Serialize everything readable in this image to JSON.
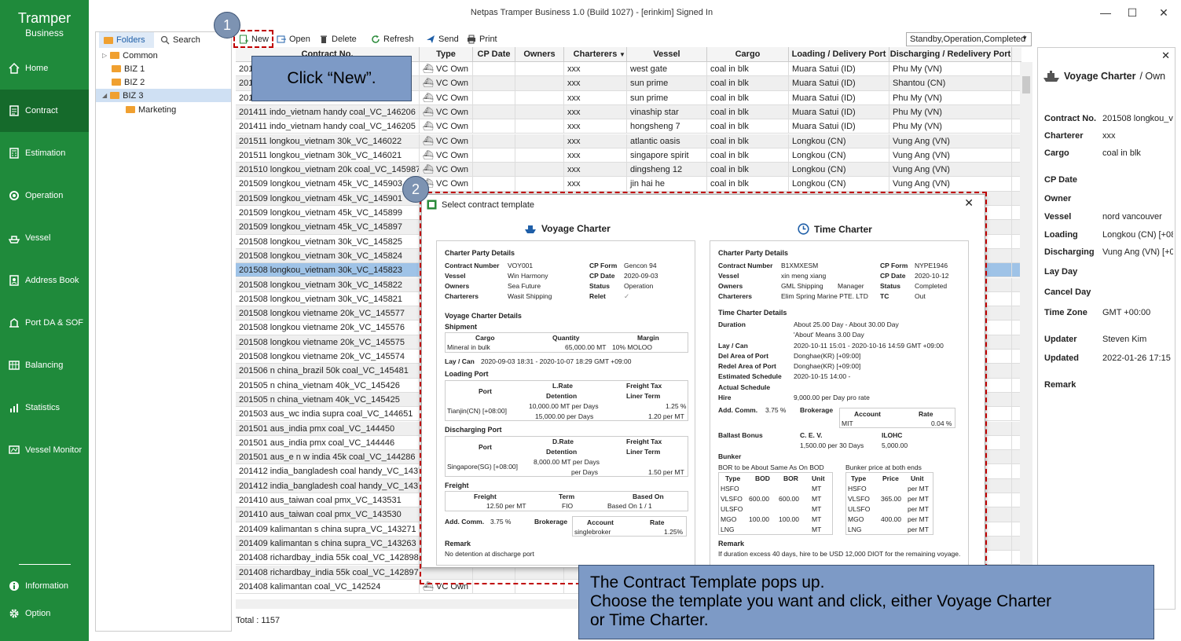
{
  "app": {
    "logo_line1": "Tramper",
    "logo_line2": "Business",
    "title": "Netpas Tramper Business 1.0 (Build 1027) - [erinkim] Signed In"
  },
  "window": {
    "minimize": "—",
    "maximize": "☐",
    "close": "✕"
  },
  "nav": [
    {
      "label": "Home",
      "icon": "home-icon"
    },
    {
      "label": "Contract",
      "icon": "contract-icon"
    },
    {
      "label": "Estimation",
      "icon": "estimation-icon"
    },
    {
      "label": "Operation",
      "icon": "operation-icon"
    },
    {
      "label": "Vessel",
      "icon": "vessel-icon"
    },
    {
      "label": "Address Book",
      "icon": "address-book-icon"
    },
    {
      "label": "Port DA & SOF",
      "icon": "port-icon"
    },
    {
      "label": "Balancing",
      "icon": "balancing-icon"
    },
    {
      "label": "Statistics",
      "icon": "statistics-icon"
    },
    {
      "label": "Vessel Monitor",
      "icon": "vessel-monitor-icon"
    }
  ],
  "nav_bottom": [
    {
      "label": "Information",
      "icon": "info-icon"
    },
    {
      "label": "Option",
      "icon": "gear-icon"
    }
  ],
  "folders": {
    "tab_folders": "Folders",
    "tab_search": "Search",
    "tree": [
      {
        "label": "Common"
      },
      {
        "label": "BIZ 1"
      },
      {
        "label": "BIZ 2"
      },
      {
        "label": "BIZ 3"
      },
      {
        "label": "Marketing"
      }
    ]
  },
  "toolbar": {
    "new": "New",
    "open": "Open",
    "delete": "Delete",
    "refresh": "Refresh",
    "send": "Send",
    "print": "Print",
    "filter": "Standby,Operation,Completed"
  },
  "grid": {
    "headers": [
      "Contract No.",
      "Type",
      "CP Date",
      "Owners",
      "Charterers",
      "Vessel",
      "Cargo",
      "Loading / Delivery Port",
      "Discharging / Redelivery Port"
    ],
    "rows": [
      [
        "201",
        "VC Own",
        "",
        "",
        "xxx",
        "west gate",
        "coal in blk",
        "Muara Satui (ID)",
        "Phu My (VN)"
      ],
      [
        "201",
        "VC Own",
        "",
        "",
        "xxx",
        "sun prime",
        "coal in blk",
        "Muara Satui (ID)",
        "Shantou (CN)"
      ],
      [
        "201",
        "VC Own",
        "",
        "",
        "xxx",
        "sun prime",
        "coal in blk",
        "Muara Satui (ID)",
        "Phu My (VN)"
      ],
      [
        "201411 indo_vietnam handy coal_VC_146206",
        "VC Own",
        "",
        "",
        "xxx",
        "vinaship star",
        "coal in blk",
        "Muara Satui (ID)",
        "Phu My (VN)"
      ],
      [
        "201411 indo_vietnam handy coal_VC_146205",
        "VC Own",
        "",
        "",
        "xxx",
        "hongsheng 7",
        "coal in blk",
        "Muara Satui (ID)",
        "Phu My (VN)"
      ],
      [
        "201511 longkou_vietnam 30k_VC_146022",
        "VC Own",
        "",
        "",
        "xxx",
        "atlantic oasis",
        "coal in blk",
        "Longkou (CN)",
        "Vung Ang (VN)"
      ],
      [
        "201511 longkou_vietnam 30k_VC_146021",
        "VC Own",
        "",
        "",
        "xxx",
        "singapore spirit",
        "coal in blk",
        "Longkou (CN)",
        "Vung Ang (VN)"
      ],
      [
        "201510 longkou_vietnam 20k coal_VC_145987",
        "VC Own",
        "",
        "",
        "xxx",
        "dingsheng 12",
        "coal in blk",
        "Longkou (CN)",
        "Vung Ang (VN)"
      ],
      [
        "201509 longkou_vietnam 45k_VC_145903",
        "VC Own",
        "",
        "",
        "xxx",
        "jin hai he",
        "coal in blk",
        "Longkou (CN)",
        "Vung Ang (VN)"
      ],
      [
        "201509 longkou_vietnam 45k_VC_145901"
      ],
      [
        "201509 longkou_vietnam 45k_VC_145899"
      ],
      [
        "201509 longkou_vietnam 45k_VC_145897"
      ],
      [
        "201508 longkou_vietnam 30k_VC_145825"
      ],
      [
        "201508 longkou_vietnam 30k_VC_145824"
      ],
      [
        "201508 longkou_vietnam 30k_VC_145823"
      ],
      [
        "201508 longkou_vietnam 30k_VC_145822"
      ],
      [
        "201508 longkou_vietnam 30k_VC_145821"
      ],
      [
        "201508 longkou vietname 20k_VC_145577"
      ],
      [
        "201508 longkou vietname 20k_VC_145576"
      ],
      [
        "201508 longkou vietname 20k_VC_145575"
      ],
      [
        "201508 longkou vietname 20k_VC_145574"
      ],
      [
        "201506 n china_brazil 50k coal_VC_145481"
      ],
      [
        "201505 n china_vietnam 40k_VC_145426"
      ],
      [
        "201505 n china_vietnam 40k_VC_145425"
      ],
      [
        "201503 aus_wc india supra coal_VC_144651"
      ],
      [
        "201501 aus_india pmx coal_VC_144450"
      ],
      [
        "201501 aus_india pmx coal_VC_144446"
      ],
      [
        "201501 aus_e n w india 45k coal_VC_144286"
      ],
      [
        "201412 india_bangladesh coal handy_VC_143729"
      ],
      [
        "201412 india_bangladesh coal handy_VC_143728"
      ],
      [
        "201410 aus_taiwan coal pmx_VC_143531"
      ],
      [
        "201410 aus_taiwan coal pmx_VC_143530"
      ],
      [
        "201409 kalimantan s china supra_VC_143271"
      ],
      [
        "201409 kalimantan s china supra_VC_143263"
      ],
      [
        "201408 richardbay_india 55k coal_VC_142898"
      ],
      [
        "201408 richardbay_india 55k coal_VC_142897"
      ],
      [
        "201408 kalimantan coal_VC_142524",
        "VC Own"
      ]
    ],
    "total": "Total : 1157"
  },
  "detail": {
    "title": "Voyage Charter",
    "title_suffix": " / Own",
    "fields": [
      {
        "label": "Contract No.",
        "value": "201508 longkou_vie"
      },
      {
        "label": "Charterer",
        "value": "xxx"
      },
      {
        "label": "Cargo",
        "value": "coal in blk"
      },
      {
        "label": "CP Date",
        "value": ""
      },
      {
        "label": "Owner",
        "value": ""
      },
      {
        "label": "Vessel",
        "value": "nord vancouver"
      },
      {
        "label": "Loading",
        "value": "Longkou (CN) [+08:"
      },
      {
        "label": "Discharging",
        "value": "Vung Ang (VN) [+0"
      },
      {
        "label": "Lay Day",
        "value": ""
      },
      {
        "label": "Cancel Day",
        "value": ""
      },
      {
        "label": "Time Zone",
        "value": "GMT +00:00"
      },
      {
        "label": "Updater",
        "value": "Steven Kim"
      },
      {
        "label": "Updated",
        "value": "2022-01-26 17:15"
      },
      {
        "label": "Remark",
        "value": ""
      }
    ]
  },
  "modal": {
    "title": "Select contract template",
    "vc": {
      "heading": "Voyage Charter",
      "cp_details": "Charter Party Details",
      "contract_number_k": "Contract Number",
      "contract_number": "VOY001",
      "cp_form_k": "CP Form",
      "cp_form": "Gencon 94",
      "vessel_k": "Vessel",
      "vessel": "Win Harmony",
      "cp_date_k": "CP Date",
      "cp_date": "2020-09-03",
      "owners_k": "Owners",
      "owners": "Sea Future",
      "status_k": "Status",
      "status": "Operation",
      "charterers_k": "Charterers",
      "charterers": "Wasit Shipping",
      "relet_k": "Relet",
      "relet": "✓",
      "vc_details": "Voyage Charter Details",
      "shipment": "Shipment",
      "ship_cols": [
        "Cargo",
        "Quantity",
        "Margin"
      ],
      "ship_row": [
        "Mineral in bulk",
        "65,000.00 MT",
        "10% MOLOO"
      ],
      "laycan_k": "Lay / Can",
      "laycan": "2020-09-03 18:31 - 2020-10-07 18:29   GMT +09:00",
      "loading_port": "Loading Port",
      "lp_cols": [
        "Port",
        "L.Rate",
        "Detention",
        "Freight Tax",
        "Liner Term"
      ],
      "lp_port": "Tianjin(CN) [+08:00]",
      "lp_rate": "10,000.00 MT per Days",
      "lp_det": "15,000.00 per Days",
      "lp_tax": "1.25 %",
      "lp_term": "1.20 per MT",
      "disch_port": "Discharging Port",
      "dp_cols": [
        "Port",
        "D.Rate",
        "Detention",
        "Freight Tax",
        "Liner Term"
      ],
      "dp_port": "Singapore(SG) [+08:00]",
      "dp_rate": "8,000.00 MT per Days",
      "dp_det": "per Days",
      "dp_term": "1.50 per MT",
      "freight": "Freight",
      "fr_cols": [
        "Freight",
        "Term",
        "Based On"
      ],
      "fr_row": [
        "12.50 per MT",
        "FIO",
        "Based On 1 / 1"
      ],
      "addcomm_k": "Add. Comm.",
      "addcomm": "3.75 %",
      "brokerage_k": "Brokerage",
      "br_cols": [
        "Account",
        "Rate"
      ],
      "br_row": [
        "singlebroker",
        "1.25%"
      ],
      "remark_k": "Remark",
      "remark": "No detention at discharge port"
    },
    "tc": {
      "heading": "Time Charter",
      "cp_details": "Charter Party Details",
      "contract_number_k": "Contract Number",
      "contract_number": "B1XMXESM",
      "cp_form_k": "CP Form",
      "cp_form": "NYPE1946",
      "vessel_k": "Vessel",
      "vessel": "xin meng xiang",
      "cp_date_k": "CP Date",
      "cp_date": "2020-10-12",
      "owners_k": "Owners",
      "owners": "GML Shipping",
      "manager": "Manager",
      "status_k": "Status",
      "status": "Completed",
      "charterers_k": "Charterers",
      "charterers": "Elim Spring Marine PTE. LTD",
      "tc_k": "TC",
      "tc": "Out",
      "tc_details": "Time Charter Details",
      "duration_k": "Duration",
      "duration": "About 25.00 Day - About 30.00 Day",
      "duration2": "'About' Means 3.00 Day",
      "laycan_k": "Lay / Can",
      "laycan": "2020-10-11 15:01 - 2020-10-16 14:59   GMT +09:00",
      "del_k": "Del Area of Port",
      "del": "Donghae(KR) [+09:00]",
      "redel_k": "Redel Area of Port",
      "redel": "Donghae(KR) [+09:00]",
      "est_k": "Estimated Schedule",
      "est": "2020-10-15 14:00 -",
      "act_k": "Actual Schedule",
      "hire_k": "Hire",
      "hire": "9,000.00 per Day    pro rate",
      "addcomm_k": "Add. Comm.",
      "addcomm": "3.75 %",
      "brokerage_k": "Brokerage",
      "br_cols": [
        "Account",
        "Rate"
      ],
      "br_row": [
        "MIT",
        "0.04 %"
      ],
      "ballast_k": "Ballast Bonus",
      "cev_k": "C. E. V.",
      "cev": "1,500.00 per 30 Days",
      "ilohc_k": "ILOHC",
      "ilohc": "5,000.00",
      "bunker_k": "Bunker",
      "bor_note": "BOR to be About Same As On BOD",
      "bunker_note": "Bunker price at both ends",
      "b1_cols": [
        "Type",
        "BOD",
        "BOR",
        "Unit"
      ],
      "b1_rows": [
        [
          "HSFO",
          "",
          "",
          "MT"
        ],
        [
          "VLSFO",
          "600.00",
          "600.00",
          "MT"
        ],
        [
          "ULSFO",
          "",
          "",
          "MT"
        ],
        [
          "MGO",
          "100.00",
          "100.00",
          "MT"
        ],
        [
          "LNG",
          "",
          "",
          "MT"
        ]
      ],
      "b2_cols": [
        "Type",
        "Price",
        "Unit"
      ],
      "b2_rows": [
        [
          "HSFO",
          "",
          "per MT"
        ],
        [
          "VLSFO",
          "365.00",
          "per MT"
        ],
        [
          "ULSFO",
          "",
          "per MT"
        ],
        [
          "MGO",
          "400.00",
          "per MT"
        ],
        [
          "LNG",
          "",
          "per MT"
        ]
      ],
      "remark_k": "Remark",
      "remark": "If duration excess 40 days, hire to be USD 12,000 DIOT for the remaining voyage."
    }
  },
  "callouts": {
    "step1": "1",
    "step2": "2",
    "step1_text": "Click “New”.",
    "step2_line1": "The Contract Template pops up.",
    "step2_line2": "Choose the template you want and click, either Voyage Charter",
    "step2_line3": "or Time Charter."
  }
}
